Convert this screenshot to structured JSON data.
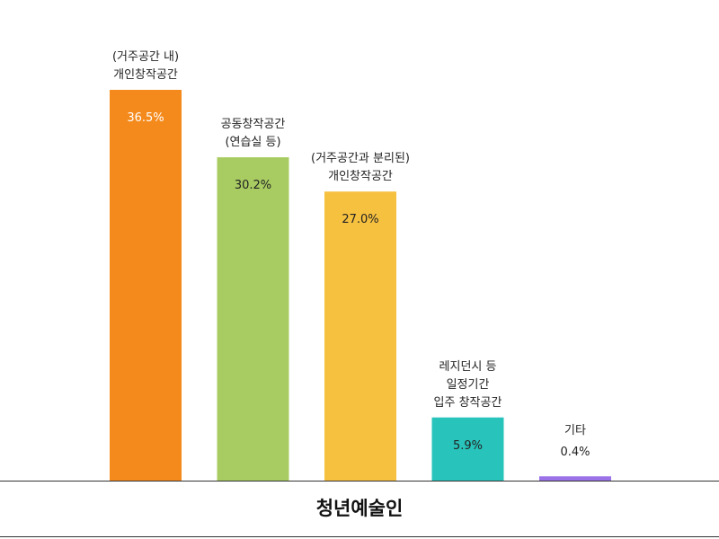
{
  "chart_data": {
    "type": "bar",
    "categories": [
      "(거주공간 내)\n개인창작공간",
      "공동창작공간\n(연습실 등)",
      "(거주공간과 분리된)\n개인창작공간",
      "레지던시 등\n일정기간\n입주 창작공간",
      "기타"
    ],
    "values": [
      36.5,
      30.2,
      27.0,
      5.9,
      0.4
    ],
    "value_labels": [
      "36.5%",
      "30.2%",
      "27.0%",
      "5.9%",
      "0.4%"
    ],
    "colors": [
      "#f58a1c",
      "#a8cc62",
      "#f7c140",
      "#28c4bb",
      "#9b72e8"
    ],
    "value_label_colors": [
      "#ffffff",
      "#222222",
      "#222222",
      "#222222",
      "#222222"
    ],
    "xlabel": "청년예술인"
  }
}
